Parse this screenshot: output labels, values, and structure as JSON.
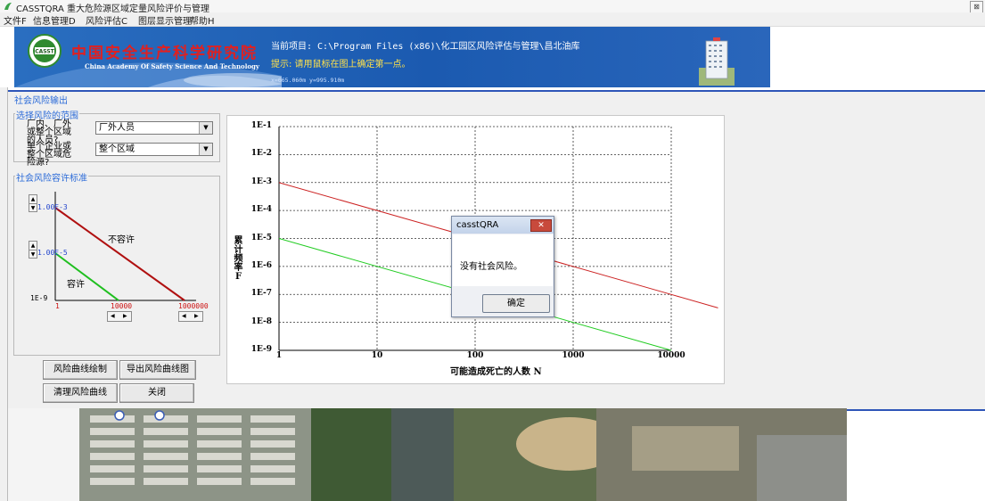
{
  "window": {
    "title": "CASSTQRA 重大危险源区域定量风险评价与管理",
    "close_glyph": "⊠"
  },
  "menu": {
    "items": [
      "文件F",
      "信息管理D",
      "风险评估C",
      "图层显示管理",
      "帮助H"
    ]
  },
  "banner": {
    "org_cn": "中国安全生产科学研究院",
    "org_en": "China Academy Of Safety Science And Technology",
    "logo_text": "CASST",
    "project": "当前项目: C:\\Program Files (x86)\\化工园区风险评估与管理\\昌北油库",
    "hint": "提示: 请用鼠标在图上确定第一点。",
    "coords": "x=665.060m  y=995.910m"
  },
  "panel": {
    "title": "社会风险输出",
    "scope_group": {
      "label": "选择风险的范围",
      "field1_label": "厂内、厂外或整个区域的人员?",
      "field1_value": "厂外人员",
      "field2_label": "单个企业或整个区域危险源?",
      "field2_value": "整个区域"
    },
    "criteria_group": {
      "label": "社会风险容许标准",
      "upper_value": "1.00E-3",
      "lower_value": "1.00E-5",
      "min_y": "1E-9",
      "x1": "1",
      "x2": "10000",
      "x3": "1000000",
      "intolerable": "不容许",
      "tolerable": "容许",
      "upper_color": "#b01010",
      "lower_color": "#1fbf1f"
    },
    "buttons": {
      "draw": "风险曲线绘制",
      "export": "导出风险曲线图",
      "clear": "清理风险曲线",
      "close": "关闭"
    }
  },
  "chart_data": {
    "type": "line",
    "xscale": "log",
    "yscale": "log",
    "xlim": [
      1,
      10000
    ],
    "ylim": [
      1e-09,
      0.1
    ],
    "grid": true,
    "x_ticks": [
      "1",
      "10",
      "100",
      "1000",
      "10000"
    ],
    "y_ticks": [
      "1E-9",
      "1E-8",
      "1E-7",
      "1E-6",
      "1E-5",
      "1E-4",
      "1E-3",
      "1E-2",
      "1E-1"
    ],
    "ylabel": "累计频率F",
    "xlabel": "可能造成死亡的人数 N",
    "series": [
      {
        "color": "#cc2222",
        "x": [
          1,
          10000,
          30000
        ],
        "y": [
          0.001,
          1e-07,
          3.3e-08
        ]
      },
      {
        "color": "#22cc22",
        "x": [
          1,
          10000
        ],
        "y": [
          1e-05,
          1e-09
        ]
      }
    ]
  },
  "dialog": {
    "title": "casstQRA",
    "message": "没有社会风险。",
    "ok": "确定",
    "close_glyph": "✕"
  }
}
